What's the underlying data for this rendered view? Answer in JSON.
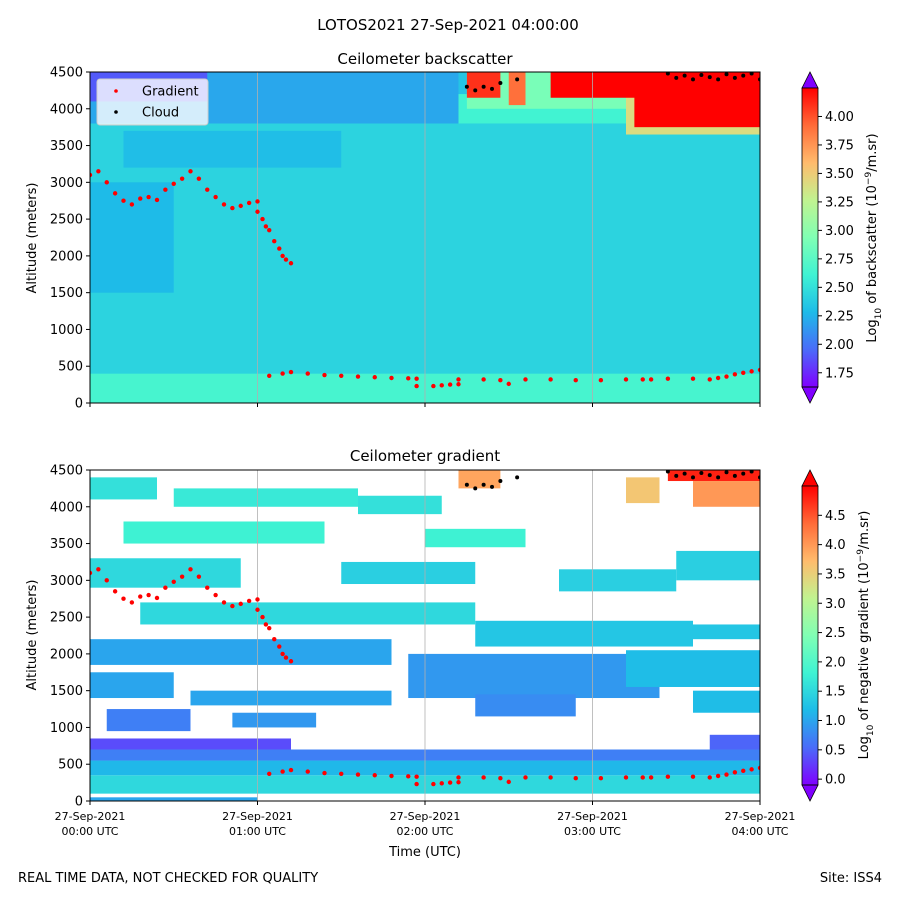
{
  "suptitle": "LOTOS2021 27-Sep-2021 04:00:00",
  "footer_left": "REAL TIME DATA, NOT CHECKED FOR QUALITY",
  "footer_right": "Site: ISS4",
  "colors": {
    "gradient_points": "#ff0000",
    "cloud_points": "#000000",
    "grid": "#b0b0b0",
    "legend_bg": "#ffffff"
  },
  "chart_data": [
    {
      "type": "heatmap",
      "title": "Ceilometer backscatter",
      "xlabel": "",
      "ylabel": "Altitude (meters)",
      "xlim_hours": [
        0,
        4
      ],
      "ylim": [
        0,
        4500
      ],
      "yticks": [
        0,
        500,
        1000,
        1500,
        2000,
        2500,
        3000,
        3500,
        4000,
        4500
      ],
      "yticklabels": [
        "0",
        "500",
        "1000",
        "1500",
        "2000",
        "2500",
        "3000",
        "3500",
        "4000",
        "4500"
      ],
      "xticks_hours": [
        0,
        1,
        2,
        3,
        4
      ],
      "xticklabels_top": [
        "",
        "",
        "",
        "",
        ""
      ],
      "xticklabels_bottom": [
        "",
        "",
        "",
        "",
        ""
      ],
      "grid_vertical": true,
      "legend": {
        "placement": "top-left",
        "entries": [
          "Gradient",
          "Cloud"
        ]
      },
      "colorbar": {
        "label": "Log10 of backscatter (10−9/m.sr)",
        "label_prefix": "Log",
        "label_sub": "10",
        "label_mid": " of backscatter (10",
        "label_sup": "−9",
        "label_suffix": "/m.sr)",
        "vmin": 1.625,
        "vmax": 4.25,
        "ticks": [
          1.75,
          2.0,
          2.25,
          2.5,
          2.75,
          3.0,
          3.25,
          3.5,
          3.75,
          4.0
        ],
        "ticklabels": [
          "1.75",
          "2.00",
          "2.25",
          "2.50",
          "2.75",
          "3.00",
          "3.25",
          "3.50",
          "3.75",
          "4.00"
        ],
        "extend": "both"
      },
      "bands": [
        {
          "t0": 0,
          "t1": 4,
          "z0": 0,
          "z1": 400,
          "v": 2.65
        },
        {
          "t0": 0,
          "t1": 4,
          "z0": 400,
          "z1": 3800,
          "v": 2.42
        },
        {
          "t0": 0,
          "t1": 2.2,
          "z0": 3800,
          "z1": 4500,
          "v": 2.2
        },
        {
          "t0": 0,
          "t1": 0.7,
          "z0": 4100,
          "z1": 4500,
          "v": 1.9
        },
        {
          "t0": 0,
          "t1": 0.5,
          "z0": 1500,
          "z1": 3000,
          "v": 2.28
        },
        {
          "t0": 0.2,
          "t1": 1.5,
          "z0": 3200,
          "z1": 3700,
          "v": 2.3
        },
        {
          "t0": 2.2,
          "t1": 4,
          "z0": 3800,
          "z1": 4200,
          "v": 2.62
        },
        {
          "t0": 2.25,
          "t1": 2.6,
          "z0": 4000,
          "z1": 4500,
          "v": 2.9
        },
        {
          "t0": 2.6,
          "t1": 3.2,
          "z0": 4000,
          "z1": 4500,
          "v": 2.9
        },
        {
          "t0": 3.2,
          "t1": 4,
          "z0": 3650,
          "z1": 4500,
          "v": 3.4
        },
        {
          "t0": 3.25,
          "t1": 4,
          "z0": 3750,
          "z1": 4500,
          "v": 4.25
        },
        {
          "t0": 2.75,
          "t1": 3.3,
          "z0": 4150,
          "z1": 4500,
          "v": 4.25
        },
        {
          "t0": 2.25,
          "t1": 2.45,
          "z0": 4150,
          "z1": 4500,
          "v": 4.1
        },
        {
          "t0": 2.5,
          "t1": 2.6,
          "z0": 4050,
          "z1": 4500,
          "v": 3.9
        }
      ],
      "gradient_series": [
        {
          "t": [
            0.0,
            0.05,
            0.1,
            0.15,
            0.2,
            0.25,
            0.3,
            0.35,
            0.4,
            0.45,
            0.5,
            0.55,
            0.6,
            0.65,
            0.7,
            0.75,
            0.8,
            0.85,
            0.9,
            0.95,
            1.0
          ],
          "z": [
            3100,
            3150,
            3000,
            2850,
            2750,
            2700,
            2780,
            2800,
            2760,
            2900,
            2980,
            3050,
            3150,
            3050,
            2900,
            2800,
            2700,
            2650,
            2680,
            2720,
            2740
          ]
        },
        {
          "t": [
            1.0,
            1.03,
            1.05,
            1.07,
            1.1,
            1.13,
            1.15,
            1.17,
            1.2
          ],
          "z": [
            2600,
            2500,
            2400,
            2350,
            2200,
            2100,
            2000,
            1950,
            1900
          ]
        },
        {
          "t": [
            1.07,
            1.15,
            1.2,
            1.3,
            1.4,
            1.5,
            1.6,
            1.7,
            1.8,
            1.9,
            1.95
          ],
          "z": [
            370,
            400,
            420,
            400,
            380,
            370,
            360,
            350,
            340,
            335,
            330
          ]
        },
        {
          "t": [
            1.95,
            2.05,
            2.1,
            2.15,
            2.2
          ],
          "z": [
            230,
            230,
            240,
            250,
            255
          ]
        },
        {
          "t": [
            2.2,
            2.35,
            2.45,
            2.5,
            2.6,
            2.75,
            2.9,
            3.05,
            3.2
          ],
          "z": [
            320,
            320,
            310,
            260,
            320,
            320,
            310,
            310,
            320
          ]
        },
        {
          "t": [
            3.3,
            3.35
          ],
          "z": [
            320,
            320
          ]
        },
        {
          "t": [
            3.45,
            3.6,
            3.7,
            3.75,
            3.8,
            3.85,
            3.9,
            3.95,
            4.0
          ],
          "z": [
            330,
            330,
            320,
            340,
            360,
            390,
            410,
            430,
            450
          ]
        }
      ],
      "cloud_series": [
        {
          "t": [
            2.25,
            2.3,
            2.35,
            2.4,
            2.45
          ],
          "z": [
            4300,
            4250,
            4300,
            4270,
            4350
          ]
        },
        {
          "t": [
            2.55
          ],
          "z": [
            4400
          ]
        },
        {
          "t": [
            3.45,
            3.5,
            3.55,
            3.6,
            3.65,
            3.7,
            3.75,
            3.8,
            3.85,
            3.9,
            3.95,
            4.0
          ],
          "z": [
            4480,
            4420,
            4450,
            4400,
            4460,
            4430,
            4400,
            4470,
            4420,
            4450,
            4480,
            4400
          ]
        }
      ]
    },
    {
      "type": "heatmap",
      "title": "Ceilometer gradient",
      "xlabel": "Time (UTC)",
      "ylabel": "Altitude (meters)",
      "xlim_hours": [
        0,
        4
      ],
      "ylim": [
        0,
        4500
      ],
      "yticks": [
        0,
        500,
        1000,
        1500,
        2000,
        2500,
        3000,
        3500,
        4000,
        4500
      ],
      "yticklabels": [
        "0",
        "500",
        "1000",
        "1500",
        "2000",
        "2500",
        "3000",
        "3500",
        "4000",
        "4500"
      ],
      "xticks_hours": [
        0,
        1,
        2,
        3,
        4
      ],
      "xticklabels_top": [
        "27-Sep-2021",
        "27-Sep-2021",
        "27-Sep-2021",
        "27-Sep-2021",
        "27-Sep-2021"
      ],
      "xticklabels_bottom": [
        "00:00 UTC",
        "01:00 UTC",
        "02:00 UTC",
        "03:00 UTC",
        "04:00 UTC"
      ],
      "grid_vertical": true,
      "colorbar": {
        "label": "Log10 of negative gradient (10−9/m.sr)",
        "label_prefix": "Log",
        "label_sub": "10",
        "label_mid": " of negative gradient (10",
        "label_sup": "−9",
        "label_suffix": "/m.sr)",
        "vmin": -0.1,
        "vmax": 5.0,
        "ticks": [
          0.0,
          0.5,
          1.0,
          1.5,
          2.0,
          2.5,
          3.0,
          3.5,
          4.0,
          4.5
        ],
        "ticklabels": [
          "0.0",
          "0.5",
          "1.0",
          "1.5",
          "2.0",
          "2.5",
          "3.0",
          "3.5",
          "4.0",
          "4.5"
        ],
        "extend": "both"
      },
      "bands": [
        {
          "t0": 0,
          "t1": 4,
          "z0": 100,
          "z1": 350,
          "v": 1.5
        },
        {
          "t0": 0,
          "t1": 4,
          "z0": 350,
          "z1": 550,
          "v": 1.15
        },
        {
          "t0": 0,
          "t1": 4,
          "z0": 550,
          "z1": 700,
          "v": 0.7
        },
        {
          "t0": 0,
          "t1": 1.2,
          "z0": 700,
          "z1": 850,
          "v": 0.35
        },
        {
          "t0": 3.7,
          "t1": 4,
          "z0": 700,
          "z1": 900,
          "v": 0.5
        },
        {
          "t0": 0,
          "t1": 1.0,
          "z0": 0,
          "z1": 50,
          "v": 1.0
        },
        {
          "t0": 0.1,
          "t1": 0.6,
          "z0": 950,
          "z1": 1250,
          "v": 0.7
        },
        {
          "t0": 0.85,
          "t1": 1.35,
          "z0": 1000,
          "z1": 1200,
          "v": 0.9
        },
        {
          "t0": 0,
          "t1": 0.5,
          "z0": 1400,
          "z1": 1750,
          "v": 1.0
        },
        {
          "t0": 0.6,
          "t1": 1.8,
          "z0": 1300,
          "z1": 1500,
          "v": 1.0
        },
        {
          "t0": 1.9,
          "t1": 3.4,
          "z0": 1400,
          "z1": 2000,
          "v": 0.9
        },
        {
          "t0": 2.3,
          "t1": 2.9,
          "z0": 1150,
          "z1": 1450,
          "v": 0.8
        },
        {
          "t0": 3.2,
          "t1": 4,
          "z0": 1550,
          "z1": 2050,
          "v": 1.2
        },
        {
          "t0": 3.6,
          "t1": 4,
          "z0": 1200,
          "z1": 1500,
          "v": 1.2
        },
        {
          "t0": 0,
          "t1": 1.8,
          "z0": 1850,
          "z1": 2200,
          "v": 1.0
        },
        {
          "t0": 2.3,
          "t1": 3.6,
          "z0": 2100,
          "z1": 2450,
          "v": 1.3
        },
        {
          "t0": 3.3,
          "t1": 4,
          "z0": 2200,
          "z1": 2400,
          "v": 1.3
        },
        {
          "t0": 0.3,
          "t1": 2.3,
          "z0": 2400,
          "z1": 2700,
          "v": 1.5
        },
        {
          "t0": 0,
          "t1": 0.9,
          "z0": 2900,
          "z1": 3300,
          "v": 1.5
        },
        {
          "t0": 1.5,
          "t1": 2.3,
          "z0": 2950,
          "z1": 3250,
          "v": 1.4
        },
        {
          "t0": 2.8,
          "t1": 3.5,
          "z0": 2850,
          "z1": 3150,
          "v": 1.4
        },
        {
          "t0": 3.5,
          "t1": 4,
          "z0": 3000,
          "z1": 3400,
          "v": 1.4
        },
        {
          "t0": 0.2,
          "t1": 1.4,
          "z0": 3500,
          "z1": 3800,
          "v": 1.8
        },
        {
          "t0": 2.0,
          "t1": 2.6,
          "z0": 3450,
          "z1": 3700,
          "v": 1.8
        },
        {
          "t0": 0,
          "t1": 0.4,
          "z0": 4100,
          "z1": 4400,
          "v": 1.6
        },
        {
          "t0": 0.5,
          "t1": 1.6,
          "z0": 4000,
          "z1": 4250,
          "v": 1.7
        },
        {
          "t0": 1.6,
          "t1": 2.1,
          "z0": 3900,
          "z1": 4150,
          "v": 1.6
        },
        {
          "t0": 2.2,
          "t1": 2.45,
          "z0": 4250,
          "z1": 4500,
          "v": 3.9
        },
        {
          "t0": 3.2,
          "t1": 3.4,
          "z0": 4050,
          "z1": 4400,
          "v": 3.6
        },
        {
          "t0": 3.45,
          "t1": 4,
          "z0": 4350,
          "z1": 4500,
          "v": 4.8
        },
        {
          "t0": 3.6,
          "t1": 4,
          "z0": 4000,
          "z1": 4350,
          "v": 4.0
        }
      ],
      "gradient_series": [
        {
          "t": [
            0.0,
            0.05,
            0.1,
            0.15,
            0.2,
            0.25,
            0.3,
            0.35,
            0.4,
            0.45,
            0.5,
            0.55,
            0.6,
            0.65,
            0.7,
            0.75,
            0.8,
            0.85,
            0.9,
            0.95,
            1.0
          ],
          "z": [
            3100,
            3150,
            3000,
            2850,
            2750,
            2700,
            2780,
            2800,
            2760,
            2900,
            2980,
            3050,
            3150,
            3050,
            2900,
            2800,
            2700,
            2650,
            2680,
            2720,
            2740
          ]
        },
        {
          "t": [
            1.0,
            1.03,
            1.05,
            1.07,
            1.1,
            1.13,
            1.15,
            1.17,
            1.2
          ],
          "z": [
            2600,
            2500,
            2400,
            2350,
            2200,
            2100,
            2000,
            1950,
            1900
          ]
        },
        {
          "t": [
            1.07,
            1.15,
            1.2,
            1.3,
            1.4,
            1.5,
            1.6,
            1.7,
            1.8,
            1.9,
            1.95
          ],
          "z": [
            370,
            400,
            420,
            400,
            380,
            370,
            360,
            350,
            340,
            335,
            330
          ]
        },
        {
          "t": [
            1.95,
            2.05,
            2.1,
            2.15,
            2.2
          ],
          "z": [
            230,
            230,
            240,
            250,
            255
          ]
        },
        {
          "t": [
            2.2,
            2.35,
            2.45,
            2.5,
            2.6,
            2.75,
            2.9,
            3.05,
            3.2
          ],
          "z": [
            320,
            320,
            310,
            260,
            320,
            320,
            310,
            310,
            320
          ]
        },
        {
          "t": [
            3.3,
            3.35
          ],
          "z": [
            320,
            320
          ]
        },
        {
          "t": [
            3.45,
            3.6,
            3.7,
            3.75,
            3.8,
            3.85,
            3.9,
            3.95,
            4.0
          ],
          "z": [
            330,
            330,
            320,
            340,
            360,
            390,
            410,
            430,
            450
          ]
        }
      ],
      "cloud_series": [
        {
          "t": [
            2.25,
            2.3,
            2.35,
            2.4,
            2.45
          ],
          "z": [
            4300,
            4250,
            4300,
            4270,
            4350
          ]
        },
        {
          "t": [
            2.55
          ],
          "z": [
            4400
          ]
        },
        {
          "t": [
            3.45,
            3.5,
            3.55,
            3.6,
            3.65,
            3.7,
            3.75,
            3.8,
            3.85,
            3.9,
            3.95,
            4.0
          ],
          "z": [
            4480,
            4420,
            4450,
            4400,
            4460,
            4430,
            4400,
            4470,
            4420,
            4450,
            4480,
            4400
          ]
        }
      ]
    }
  ]
}
